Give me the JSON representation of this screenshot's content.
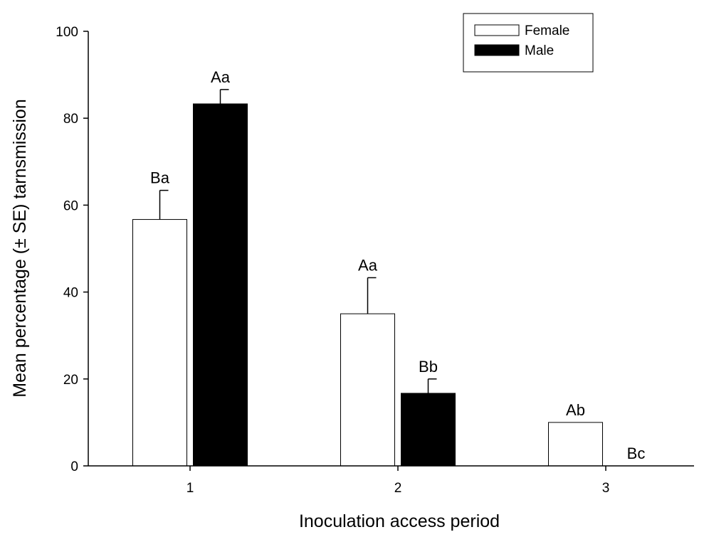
{
  "chart_data": {
    "type": "bar",
    "title": "",
    "xlabel": "Inoculation access period",
    "ylabel": "Mean percentage (± SE) tarnsmission",
    "categories": [
      "1",
      "2",
      "3"
    ],
    "ylim": [
      0,
      100
    ],
    "yticks": [
      0,
      20,
      40,
      60,
      80,
      100
    ],
    "yticks_text": [
      "0",
      "20",
      "40",
      "60",
      "80",
      "100"
    ],
    "grid": false,
    "legend_position": "top-right",
    "series": [
      {
        "name": "Female",
        "color": "#ffffff",
        "edge_color": "#000000",
        "values": [
          56.7,
          35.0,
          10.0
        ],
        "errors": [
          6.7,
          8.3,
          0
        ],
        "labels": [
          "Ba",
          "Aa",
          "Ab"
        ]
      },
      {
        "name": "Male",
        "color": "#000000",
        "edge_color": "#000000",
        "values": [
          83.3,
          16.7,
          0
        ],
        "errors": [
          3.3,
          3.3,
          0
        ],
        "labels": [
          "Aa",
          "Bb",
          "Bc"
        ]
      }
    ]
  }
}
